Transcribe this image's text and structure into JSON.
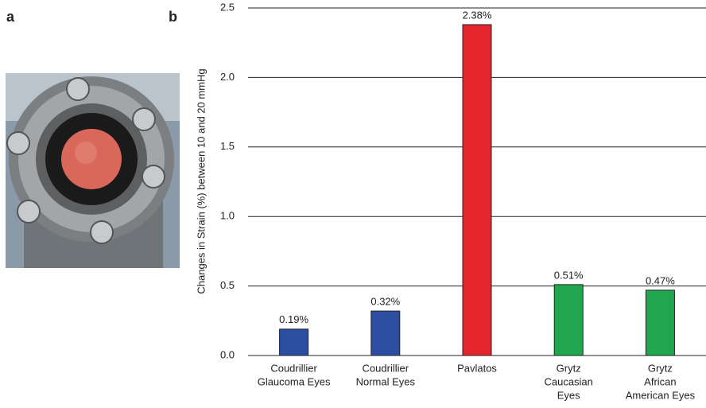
{
  "panel_labels": {
    "a": "a",
    "b": "b"
  },
  "chart_data": {
    "type": "bar",
    "y_label": "Changes in Strain (%) between 10 and 20 mmHg",
    "categories": [
      [
        "Coudrillier",
        "Glaucoma Eyes"
      ],
      [
        "Coudrillier",
        "Normal Eyes"
      ],
      [
        "Pavlatos"
      ],
      [
        "Grytz",
        "Caucasian",
        "Eyes"
      ],
      [
        "Grytz",
        "African",
        "American Eyes"
      ]
    ],
    "values": [
      0.19,
      0.32,
      2.38,
      0.51,
      0.47
    ],
    "value_labels": [
      "0.19%",
      "0.32%",
      "2.38%",
      "0.51%",
      "0.47%"
    ],
    "colors": [
      "#2b4ea2",
      "#2b4ea2",
      "#e4262c",
      "#1fa64f",
      "#1fa64f"
    ],
    "ylim": [
      0,
      2.5
    ],
    "yticks": [
      {
        "value": 0,
        "label": "0.0"
      },
      0.5,
      {
        "value": 1,
        "label": "1.0"
      },
      1.5,
      {
        "value": 2,
        "label": "2.0"
      },
      2.5
    ],
    "grid": true
  }
}
